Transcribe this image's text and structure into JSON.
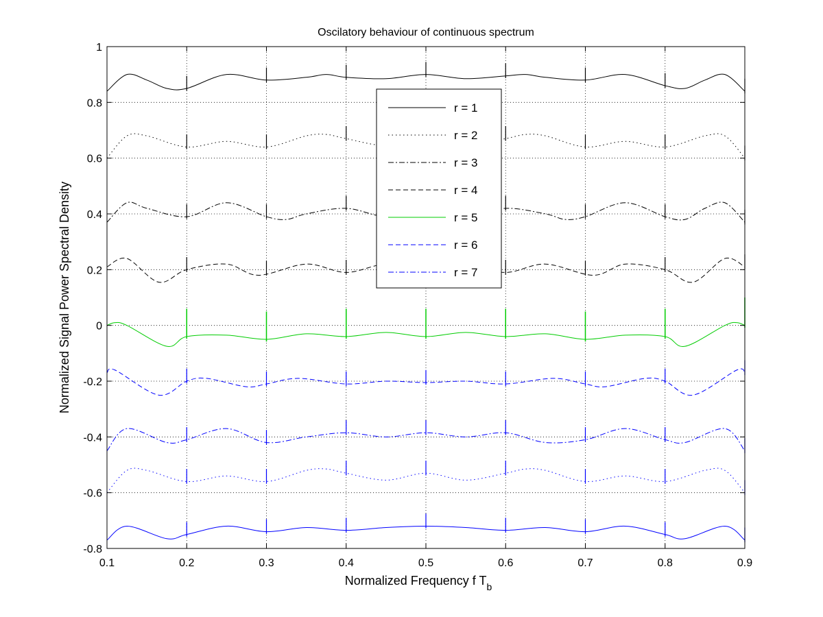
{
  "chart_data": {
    "type": "line",
    "title": "Oscilatory behaviour of continuous spectrum",
    "xlabel": "Normalized Frequency f T",
    "xlabel_subscript": "b",
    "ylabel": "Normalized Signal Power Spectral Density",
    "xlim": [
      0.1,
      0.9
    ],
    "ylim": [
      -0.8,
      1
    ],
    "xticks": [
      "0.1",
      "0.2",
      "0.3",
      "0.4",
      "0.5",
      "0.6",
      "0.7",
      "0.8",
      "0.9"
    ],
    "yticks": [
      "-0.8",
      "-0.6",
      "-0.4",
      "-0.2",
      "0",
      "0.2",
      "0.4",
      "0.6",
      "0.8",
      "1"
    ],
    "grid": true,
    "legend_position": "top-center",
    "spike_x": [
      0.2,
      0.3,
      0.4,
      0.5,
      0.6,
      0.7,
      0.8,
      0.9
    ],
    "series": [
      {
        "name": "r = 1",
        "color": "#000000",
        "dash": "solid",
        "x": [
          0.1,
          0.125,
          0.15,
          0.175,
          0.2,
          0.25,
          0.3,
          0.35,
          0.375,
          0.4,
          0.45,
          0.5,
          0.55,
          0.6,
          0.625,
          0.65,
          0.7,
          0.75,
          0.8,
          0.825,
          0.85,
          0.875,
          0.9
        ],
        "y": [
          0.84,
          0.9,
          0.88,
          0.85,
          0.85,
          0.9,
          0.88,
          0.89,
          0.9,
          0.89,
          0.885,
          0.9,
          0.885,
          0.895,
          0.9,
          0.89,
          0.88,
          0.9,
          0.86,
          0.85,
          0.88,
          0.9,
          0.84
        ]
      },
      {
        "name": "r = 2",
        "color": "#000000",
        "dash": "dotted",
        "x": [
          0.1,
          0.125,
          0.15,
          0.2,
          0.25,
          0.3,
          0.35,
          0.375,
          0.4,
          0.45,
          0.5,
          0.55,
          0.6,
          0.625,
          0.65,
          0.7,
          0.75,
          0.8,
          0.85,
          0.875,
          0.9
        ],
        "y": [
          0.6,
          0.68,
          0.68,
          0.64,
          0.66,
          0.64,
          0.68,
          0.685,
          0.67,
          0.645,
          0.67,
          0.645,
          0.67,
          0.685,
          0.68,
          0.64,
          0.66,
          0.64,
          0.68,
          0.68,
          0.6
        ]
      },
      {
        "name": "r = 3",
        "color": "#000000",
        "dash": "dashdot",
        "x": [
          0.1,
          0.125,
          0.15,
          0.2,
          0.25,
          0.3,
          0.325,
          0.35,
          0.4,
          0.45,
          0.5,
          0.55,
          0.6,
          0.65,
          0.675,
          0.7,
          0.75,
          0.8,
          0.825,
          0.85,
          0.875,
          0.9
        ],
        "y": [
          0.37,
          0.44,
          0.42,
          0.39,
          0.44,
          0.39,
          0.38,
          0.4,
          0.42,
          0.39,
          0.41,
          0.39,
          0.42,
          0.4,
          0.38,
          0.39,
          0.44,
          0.39,
          0.38,
          0.42,
          0.44,
          0.37
        ]
      },
      {
        "name": "r = 4",
        "color": "#000000",
        "dash": "dashed",
        "x": [
          0.1,
          0.125,
          0.165,
          0.2,
          0.25,
          0.29,
          0.35,
          0.4,
          0.45,
          0.5,
          0.55,
          0.6,
          0.65,
          0.71,
          0.75,
          0.8,
          0.835,
          0.875,
          0.9
        ],
        "y": [
          0.21,
          0.24,
          0.155,
          0.2,
          0.22,
          0.18,
          0.22,
          0.19,
          0.22,
          0.2,
          0.22,
          0.19,
          0.22,
          0.18,
          0.22,
          0.2,
          0.155,
          0.24,
          0.21
        ]
      },
      {
        "name": "r = 5",
        "color": "#00cc00",
        "dash": "solid",
        "x": [
          0.1,
          0.11,
          0.125,
          0.175,
          0.2,
          0.25,
          0.3,
          0.35,
          0.4,
          0.45,
          0.5,
          0.55,
          0.6,
          0.65,
          0.7,
          0.75,
          0.8,
          0.825,
          0.875,
          0.89,
          0.9
        ],
        "y": [
          0.0,
          0.01,
          0.0,
          -0.075,
          -0.04,
          -0.035,
          -0.05,
          -0.03,
          -0.04,
          -0.025,
          -0.04,
          -0.025,
          -0.04,
          -0.03,
          -0.05,
          -0.035,
          -0.04,
          -0.075,
          0.0,
          0.01,
          0.0
        ]
      },
      {
        "name": "r = 6",
        "color": "#0000ff",
        "dash": "dashed",
        "x": [
          0.1,
          0.11,
          0.165,
          0.2,
          0.225,
          0.275,
          0.3,
          0.34,
          0.4,
          0.45,
          0.5,
          0.55,
          0.6,
          0.66,
          0.7,
          0.725,
          0.775,
          0.8,
          0.835,
          0.89,
          0.9
        ],
        "y": [
          -0.17,
          -0.16,
          -0.25,
          -0.2,
          -0.19,
          -0.22,
          -0.21,
          -0.19,
          -0.21,
          -0.2,
          -0.205,
          -0.2,
          -0.21,
          -0.19,
          -0.21,
          -0.22,
          -0.19,
          -0.2,
          -0.25,
          -0.16,
          -0.17
        ]
      },
      {
        "name": "r = 7",
        "color": "#0000ff",
        "dash": "dashdot",
        "x": [
          0.1,
          0.125,
          0.175,
          0.2,
          0.25,
          0.3,
          0.35,
          0.4,
          0.45,
          0.5,
          0.55,
          0.6,
          0.65,
          0.7,
          0.75,
          0.8,
          0.825,
          0.875,
          0.9
        ],
        "y": [
          -0.45,
          -0.37,
          -0.42,
          -0.41,
          -0.37,
          -0.42,
          -0.4,
          -0.385,
          -0.4,
          -0.385,
          -0.4,
          -0.385,
          -0.42,
          -0.41,
          -0.37,
          -0.41,
          -0.42,
          -0.37,
          -0.45
        ]
      },
      {
        "name": "",
        "color": "#0000ff",
        "dash": "dotted",
        "x": [
          0.1,
          0.125,
          0.15,
          0.2,
          0.25,
          0.3,
          0.35,
          0.375,
          0.4,
          0.45,
          0.5,
          0.55,
          0.6,
          0.625,
          0.65,
          0.7,
          0.75,
          0.8,
          0.85,
          0.875,
          0.9
        ],
        "y": [
          -0.6,
          -0.52,
          -0.52,
          -0.56,
          -0.54,
          -0.56,
          -0.52,
          -0.515,
          -0.53,
          -0.555,
          -0.53,
          -0.555,
          -0.53,
          -0.515,
          -0.52,
          -0.56,
          -0.54,
          -0.56,
          -0.52,
          -0.52,
          -0.6
        ]
      },
      {
        "name": "",
        "color": "#0000ff",
        "dash": "solid",
        "x": [
          0.1,
          0.125,
          0.175,
          0.2,
          0.25,
          0.3,
          0.35,
          0.4,
          0.45,
          0.5,
          0.55,
          0.6,
          0.65,
          0.7,
          0.75,
          0.8,
          0.825,
          0.875,
          0.9
        ],
        "y": [
          -0.77,
          -0.72,
          -0.765,
          -0.75,
          -0.72,
          -0.74,
          -0.725,
          -0.735,
          -0.725,
          -0.72,
          -0.725,
          -0.735,
          -0.725,
          -0.74,
          -0.72,
          -0.75,
          -0.765,
          -0.72,
          -0.77
        ]
      }
    ]
  }
}
